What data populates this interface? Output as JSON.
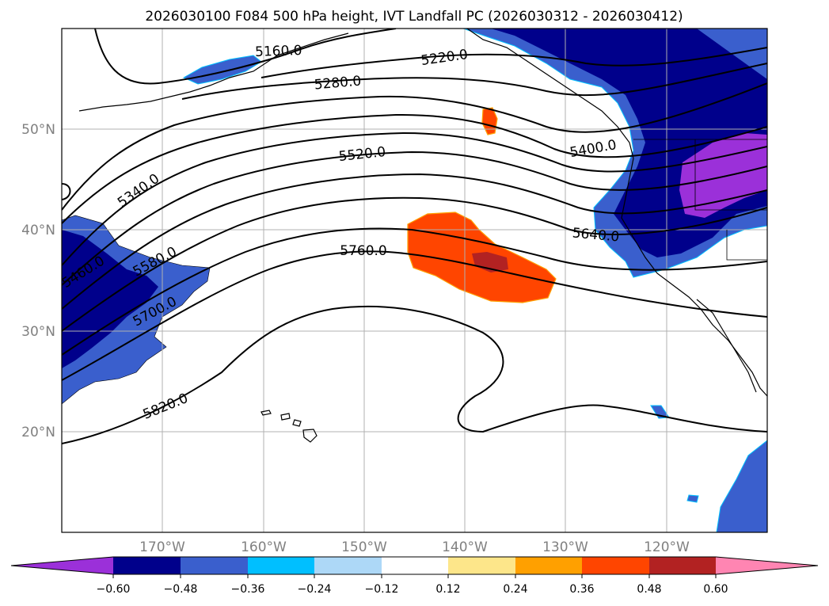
{
  "figure": {
    "title": "2026030100 F084 500 hPa height, IVT Landfall PC (2026030312 - 2026030412)"
  },
  "map": {
    "projection": "PlateCarree",
    "extent": {
      "lon_min": -180,
      "lon_max": -110,
      "lat_min": 10,
      "lat_max": 60
    },
    "gridlines": true,
    "lat_ticks": [
      "50°N",
      "40°N",
      "30°N",
      "20°N"
    ],
    "lon_ticks": [
      "170°W",
      "160°W",
      "150°W",
      "140°W",
      "130°W",
      "120°W"
    ],
    "colors": {
      "coastline": "#000000",
      "gridline": "#b0b0b0",
      "height_contour": "#000000"
    }
  },
  "contour_labels": [
    "5160.0",
    "5220.0",
    "5280.0",
    "5400.0",
    "5520.0",
    "5340.0",
    "5640.0",
    "5760.0",
    "5460.0",
    "5580.0",
    "5700.0",
    "5820.0"
  ],
  "colorbar": {
    "orientation": "horizontal",
    "extend": "both",
    "tick_labels": [
      "−0.60",
      "−0.48",
      "−0.36",
      "−0.24",
      "−0.12",
      "0.12",
      "0.24",
      "0.36",
      "0.48",
      "0.60"
    ],
    "colors": [
      "#9b30d9",
      "#00008b",
      "#3a5fcd",
      "#00bfff",
      "#add8f7",
      "#ffffff",
      "#fde68a",
      "#ffa000",
      "#ff4500",
      "#b22222",
      "#ff85b2"
    ]
  }
}
